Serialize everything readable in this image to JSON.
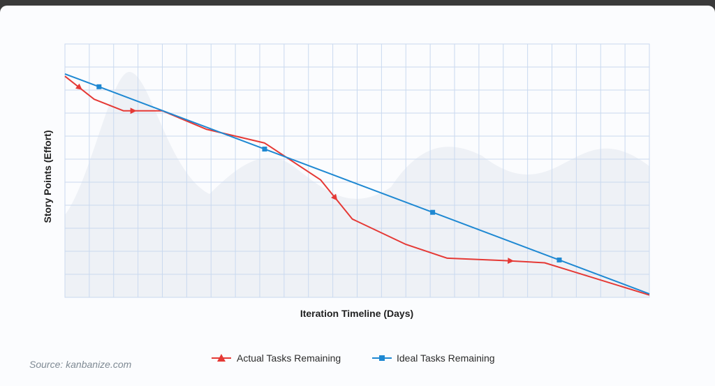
{
  "chart_data": {
    "type": "line",
    "title": "",
    "xlabel": "Iteration Timeline (Days)",
    "ylabel": "Story Points (Effort)",
    "xlim": [
      0,
      24
    ],
    "ylim": [
      0,
      11
    ],
    "grid": true,
    "legend_position": "bottom-center",
    "series": [
      {
        "name": "Actual Tasks Remaining",
        "color": "#e53935",
        "marker": "triangle",
        "x": [
          0,
          0.6,
          1.2,
          2.4,
          4.0,
          5.8,
          8.2,
          10.5,
          11.8,
          14.0,
          15.7,
          18.0,
          19.7,
          24.0
        ],
        "y": [
          9.6,
          9.1,
          8.6,
          8.1,
          8.1,
          7.3,
          6.7,
          5.1,
          3.4,
          2.3,
          1.7,
          1.6,
          1.5,
          0.1
        ],
        "marker_x": [
          0.6,
          2.8,
          11.1,
          18.3
        ]
      },
      {
        "name": "Ideal Tasks Remaining",
        "color": "#1e88d2",
        "marker": "square",
        "x": [
          0,
          24
        ],
        "y": [
          9.7,
          0.15
        ],
        "marker_x": [
          1.4,
          8.2,
          15.1,
          20.3
        ]
      }
    ]
  },
  "source_text": "Source: kanbanize.com"
}
